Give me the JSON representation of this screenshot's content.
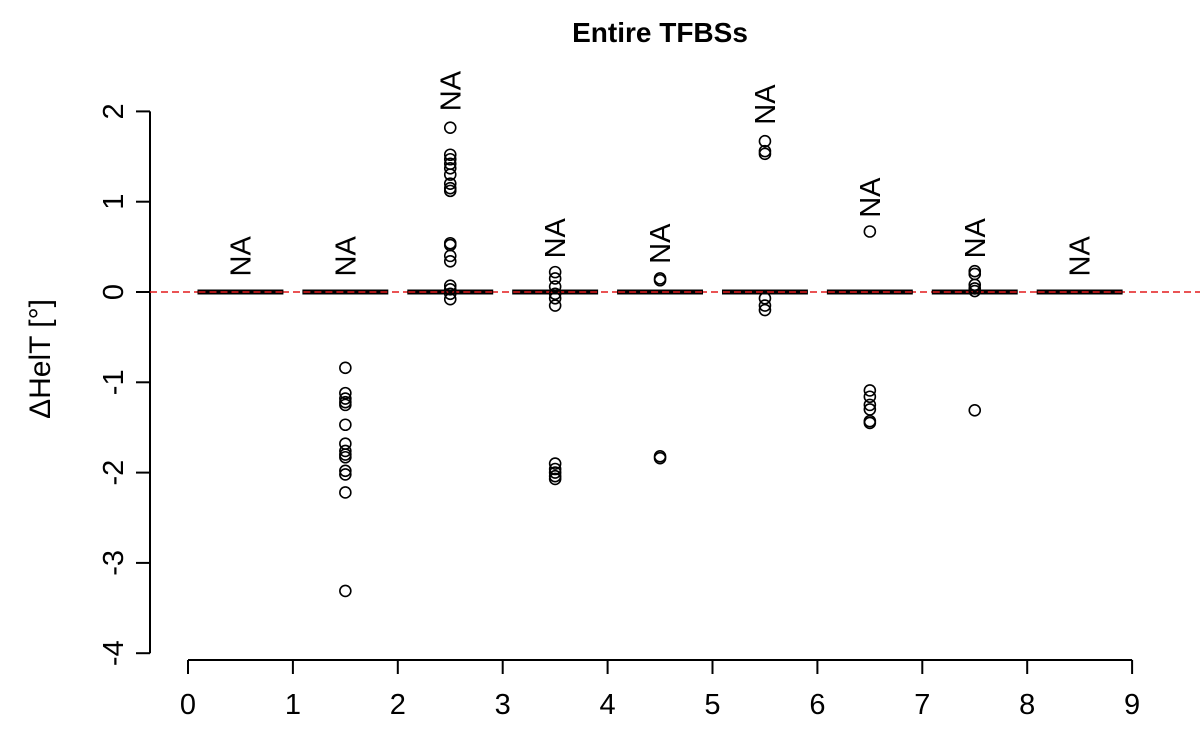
{
  "chart_data": {
    "type": "boxplot",
    "title": "Entire TFBSs",
    "xlabel": "",
    "ylabel": "ΔHelT [°]",
    "xlim": [
      0,
      9
    ],
    "ylim": [
      -4,
      2
    ],
    "x_ticks": [
      "0",
      "1",
      "2",
      "3",
      "4",
      "5",
      "6",
      "7",
      "8",
      "9"
    ],
    "y_ticks": [
      "-4",
      "-3",
      "-2",
      "-1",
      "0",
      "1",
      "2"
    ],
    "reference_line": {
      "y": 0,
      "color": "#e31a1c",
      "style": "dashed"
    },
    "na_label": "NA",
    "boxes": [
      {
        "x": 0.5,
        "median": 0,
        "q1": 0,
        "q3": 0,
        "outliers": [],
        "na_y": 0.15
      },
      {
        "x": 1.5,
        "median": 0,
        "q1": 0,
        "q3": 0,
        "outliers": [
          -0.84,
          -1.12,
          -1.18,
          -1.22,
          -1.25,
          -1.47,
          -1.68,
          -1.76,
          -1.8,
          -1.83,
          -1.98,
          -2.02,
          -2.22,
          -3.31
        ],
        "na_y": 0.15
      },
      {
        "x": 2.5,
        "median": 0,
        "q1": 0,
        "q3": 0,
        "outliers": [
          1.82,
          1.52,
          1.47,
          1.42,
          1.37,
          1.3,
          1.2,
          1.15,
          1.12,
          0.54,
          0.52,
          0.4,
          0.34,
          0.07,
          0.03,
          -0.02,
          -0.08
        ],
        "na_y": 1.98
      },
      {
        "x": 3.5,
        "median": 0,
        "q1": 0,
        "q3": 0,
        "outliers": [
          0.22,
          0.15,
          0.06,
          -0.02,
          -0.07,
          -0.15,
          -1.9,
          -1.96,
          -2.0,
          -2.04,
          -2.07
        ],
        "na_y": 0.35
      },
      {
        "x": 4.5,
        "median": 0,
        "q1": 0,
        "q3": 0,
        "outliers": [
          0.15,
          0.13,
          -1.82,
          -1.84
        ],
        "na_y": 0.29
      },
      {
        "x": 5.5,
        "median": 0,
        "q1": 0,
        "q3": 0,
        "outliers": [
          1.67,
          1.56,
          1.53,
          -0.07,
          -0.15,
          -0.2
        ],
        "na_y": 1.83
      },
      {
        "x": 6.5,
        "median": 0,
        "q1": 0,
        "q3": 0,
        "outliers": [
          0.67,
          -1.09,
          -1.16,
          -1.25,
          -1.3,
          -1.43,
          -1.45
        ],
        "na_y": 0.8
      },
      {
        "x": 7.5,
        "median": 0,
        "q1": 0,
        "q3": 0,
        "outliers": [
          0.23,
          0.2,
          0.08,
          0.04,
          0.01,
          -1.31
        ],
        "na_y": 0.35
      },
      {
        "x": 8.5,
        "median": 0,
        "q1": 0,
        "q3": 0,
        "outliers": [],
        "na_y": 0.15
      }
    ]
  }
}
